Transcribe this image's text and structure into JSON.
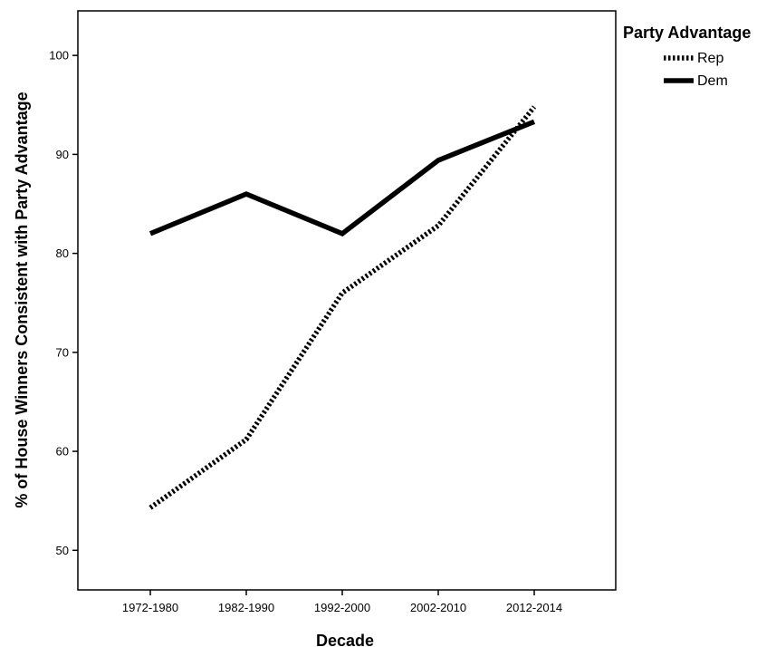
{
  "chart_data": {
    "type": "line",
    "xlabel": "Decade",
    "ylabel": "% of House Winners Consistent with Party Advantage",
    "categories": [
      "1972-1980",
      "1982-1990",
      "1992-2000",
      "2002-2010",
      "2012-2014"
    ],
    "yticks": [
      50,
      60,
      70,
      80,
      90,
      100
    ],
    "ylim": [
      46,
      104.5
    ],
    "grid": false,
    "legend": {
      "title": "Party Advantage",
      "placement": "top-right outside plot"
    },
    "series": [
      {
        "name": "Rep",
        "style": "dotted",
        "color": "#000000",
        "values": [
          54.3,
          61.2,
          76.0,
          82.8,
          94.8
        ]
      },
      {
        "name": "Dem",
        "style": "solid",
        "color": "#000000",
        "values": [
          82.0,
          86.0,
          82.0,
          89.4,
          93.3
        ]
      }
    ]
  }
}
